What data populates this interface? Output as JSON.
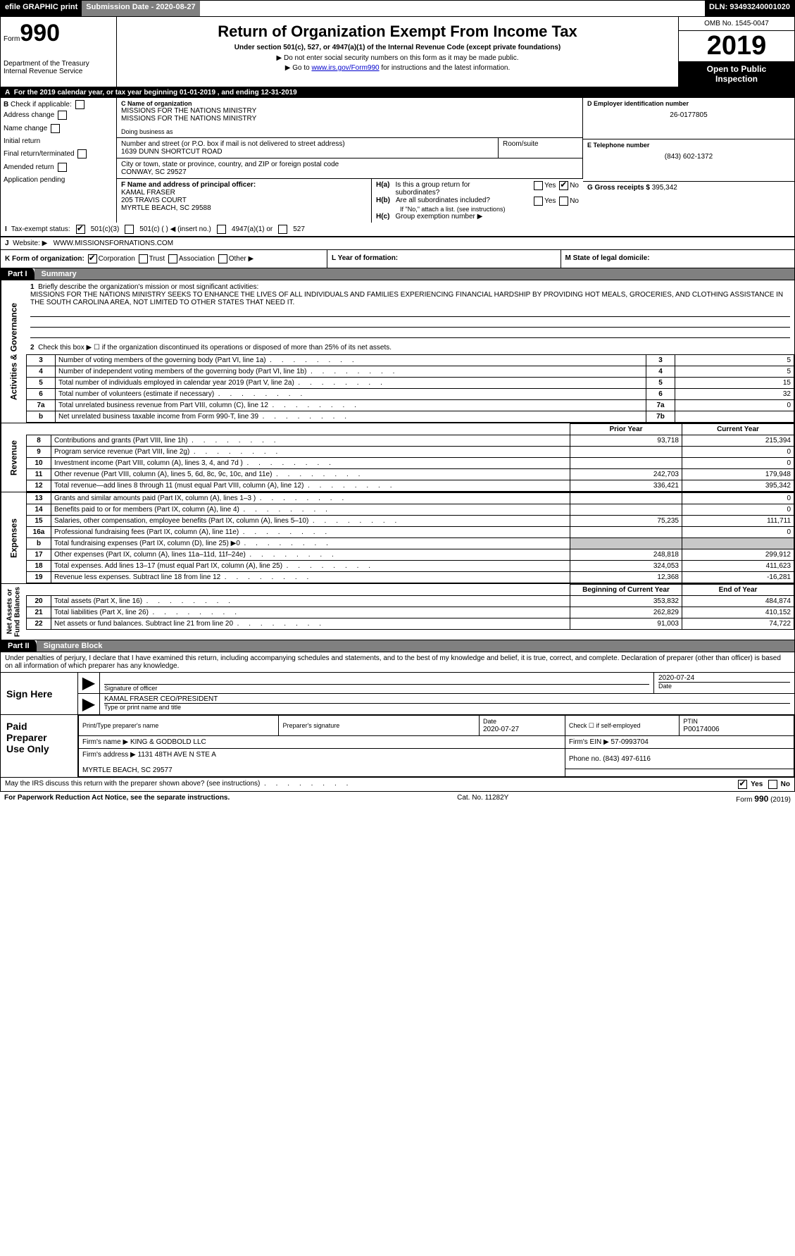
{
  "colors": {
    "black": "#000000",
    "white": "#ffffff",
    "gray": "#808080",
    "shade": "#c8c8c8",
    "link": "#0000cc"
  },
  "topbar": {
    "efile": "efile GRAPHIC print",
    "submission_label": "Submission Date - 2020-08-27",
    "dln": "DLN: 93493240001020"
  },
  "header": {
    "form_word": "Form",
    "form_num": "990",
    "dept": "Department of the Treasury\nInternal Revenue Service",
    "title": "Return of Organization Exempt From Income Tax",
    "subtitle": "Under section 501(c), 527, or 4947(a)(1) of the Internal Revenue Code (except private foundations)",
    "line_ssn": "▶ Do not enter social security numbers on this form as it may be made public.",
    "line_goto_pre": "▶ Go to ",
    "line_goto_link": "www.irs.gov/Form990",
    "line_goto_post": " for instructions and the latest information.",
    "omb": "OMB No. 1545-0047",
    "year": "2019",
    "inspect": "Open to Public\nInspection"
  },
  "A": {
    "text_pre": "For the 2019 calendar year, or tax year beginning ",
    "begin": "01-01-2019",
    "mid": " , and ending ",
    "end": "12-31-2019"
  },
  "B": {
    "header": "Check if applicable:",
    "items": [
      "Address change",
      "Name change",
      "Initial return",
      "Final return/terminated",
      "Amended return",
      "Application pending"
    ]
  },
  "C": {
    "name_label": "C Name of organization",
    "name1": "MISSIONS FOR THE NATIONS MINISTRY",
    "name2": "MISSIONS FOR THE NATIONS MINISTRY",
    "dba_label": "Doing business as",
    "street_label": "Number and street (or P.O. box if mail is not delivered to street address)",
    "room_label": "Room/suite",
    "street": "1639 DUNN SHORTCUT ROAD",
    "city_label": "City or town, state or province, country, and ZIP or foreign postal code",
    "city": "CONWAY, SC  29527"
  },
  "D": {
    "label": "D Employer identification number",
    "value": "26-0177805"
  },
  "E": {
    "label": "E Telephone number",
    "value": "(843) 602-1372"
  },
  "G": {
    "label": "G Gross receipts $ ",
    "value": "395,342"
  },
  "F": {
    "label": "F  Name and address of principal officer:",
    "name": "KAMAL FRASER",
    "addr1": "205 TRAVIS COURT",
    "addr2": "MYRTLE BEACH, SC  29588"
  },
  "H": {
    "a_label": "H(a)",
    "a_text": "Is this a group return for\nsubordinates?",
    "b_label": "H(b)",
    "b_text": "Are all subordinates included?",
    "b_note": "If \"No,\" attach a list. (see instructions)",
    "c_label": "H(c)",
    "c_text": "Group exemption number ▶",
    "yes": "Yes",
    "no": "No"
  },
  "I": {
    "label": "Tax-exempt status:",
    "opts": [
      "501(c)(3)",
      "501(c) (  ) ◀ (insert no.)",
      "4947(a)(1) or",
      "527"
    ]
  },
  "J": {
    "label": "Website: ▶",
    "value": "WWW.MISSIONSFORNATIONS.COM"
  },
  "K": {
    "label": "K Form of organization:",
    "opts": [
      "Corporation",
      "Trust",
      "Association",
      "Other ▶"
    ]
  },
  "L": {
    "label": "L Year of formation:"
  },
  "M": {
    "label": "M State of legal domicile:"
  },
  "part1": {
    "tab": "Part I",
    "title": "Summary",
    "line1_label": "Briefly describe the organization's mission or most significant activities:",
    "mission": "MISSIONS FOR THE NATIONS MINISTRY SEEKS TO ENHANCE THE LIVES OF ALL INDIVIDUALS AND FAMILIES EXPERIENCING FINANCIAL HARDSHIP BY PROVIDING HOT MEALS, GROCERIES, AND CLOTHING ASSISTANCE IN THE SOUTH CAROLINA AREA, NOT LIMITED TO OTHER STATES THAT NEED IT.",
    "line2": "Check this box ▶ ☐  if the organization discontinued its operations or disposed of more than 25% of its net assets.",
    "ag_label": "Activities & Governance",
    "gov_rows": [
      {
        "n": "3",
        "desc": "Number of voting members of the governing body (Part VI, line 1a)",
        "box": "3",
        "val": "5"
      },
      {
        "n": "4",
        "desc": "Number of independent voting members of the governing body (Part VI, line 1b)",
        "box": "4",
        "val": "5"
      },
      {
        "n": "5",
        "desc": "Total number of individuals employed in calendar year 2019 (Part V, line 2a)",
        "box": "5",
        "val": "15"
      },
      {
        "n": "6",
        "desc": "Total number of volunteers (estimate if necessary)",
        "box": "6",
        "val": "32"
      },
      {
        "n": "7a",
        "desc": "Total unrelated business revenue from Part VIII, column (C), line 12",
        "box": "7a",
        "val": "0"
      },
      {
        "n": "b",
        "desc": "Net unrelated business taxable income from Form 990-T, line 39",
        "box": "7b",
        "val": ""
      }
    ],
    "py_header": "Prior Year",
    "cy_header": "Current Year",
    "rev_label": "Revenue",
    "rev_rows": [
      {
        "n": "8",
        "desc": "Contributions and grants (Part VIII, line 1h)",
        "py": "93,718",
        "cy": "215,394"
      },
      {
        "n": "9",
        "desc": "Program service revenue (Part VIII, line 2g)",
        "py": "",
        "cy": "0"
      },
      {
        "n": "10",
        "desc": "Investment income (Part VIII, column (A), lines 3, 4, and 7d )",
        "py": "",
        "cy": "0"
      },
      {
        "n": "11",
        "desc": "Other revenue (Part VIII, column (A), lines 5, 6d, 8c, 9c, 10c, and 11e)",
        "py": "242,703",
        "cy": "179,948"
      },
      {
        "n": "12",
        "desc": "Total revenue—add lines 8 through 11 (must equal Part VIII, column (A), line 12)",
        "py": "336,421",
        "cy": "395,342"
      }
    ],
    "exp_label": "Expenses",
    "exp_rows": [
      {
        "n": "13",
        "desc": "Grants and similar amounts paid (Part IX, column (A), lines 1–3 )",
        "py": "",
        "cy": "0",
        "shade": false
      },
      {
        "n": "14",
        "desc": "Benefits paid to or for members (Part IX, column (A), line 4)",
        "py": "",
        "cy": "0",
        "shade": false
      },
      {
        "n": "15",
        "desc": "Salaries, other compensation, employee benefits (Part IX, column (A), lines 5–10)",
        "py": "75,235",
        "cy": "111,711",
        "shade": false
      },
      {
        "n": "16a",
        "desc": "Professional fundraising fees (Part IX, column (A), line 11e)",
        "py": "",
        "cy": "0",
        "shade": false
      },
      {
        "n": "b",
        "desc": "Total fundraising expenses (Part IX, column (D), line 25) ▶0",
        "py": "",
        "cy": "",
        "shade": true
      },
      {
        "n": "17",
        "desc": "Other expenses (Part IX, column (A), lines 11a–11d, 11f–24e)",
        "py": "248,818",
        "cy": "299,912",
        "shade": false
      },
      {
        "n": "18",
        "desc": "Total expenses. Add lines 13–17 (must equal Part IX, column (A), line 25)",
        "py": "324,053",
        "cy": "411,623",
        "shade": false
      },
      {
        "n": "19",
        "desc": "Revenue less expenses. Subtract line 18 from line 12",
        "py": "12,368",
        "cy": "-16,281",
        "shade": false
      }
    ],
    "na_label": "Net Assets or\nFund Balances",
    "boy_header": "Beginning of Current Year",
    "eoy_header": "End of Year",
    "na_rows": [
      {
        "n": "20",
        "desc": "Total assets (Part X, line 16)",
        "py": "353,832",
        "cy": "484,874"
      },
      {
        "n": "21",
        "desc": "Total liabilities (Part X, line 26)",
        "py": "262,829",
        "cy": "410,152"
      },
      {
        "n": "22",
        "desc": "Net assets or fund balances. Subtract line 21 from line 20",
        "py": "91,003",
        "cy": "74,722"
      }
    ]
  },
  "part2": {
    "tab": "Part II",
    "title": "Signature Block",
    "penalties": "Under penalties of perjury, I declare that I have examined this return, including accompanying schedules and statements, and to the best of my knowledge and belief, it is true, correct, and complete. Declaration of preparer (other than officer) is based on all information of which preparer has any knowledge.",
    "sign_here": "Sign Here",
    "sig_officer_label": "Signature of officer",
    "sig_date": "2020-07-24",
    "date_label": "Date",
    "officer_name": "KAMAL FRASER CEO/PRESIDENT",
    "officer_label": "Type or print name and title",
    "paid": "Paid\nPreparer\nUse Only",
    "prep_name_label": "Print/Type preparer's name",
    "prep_sig_label": "Preparer's signature",
    "prep_date_label": "Date",
    "prep_date": "2020-07-27",
    "check_self": "Check ☐ if self-employed",
    "ptin_label": "PTIN",
    "ptin": "P00174006",
    "firm_name_label": "Firm's name    ▶",
    "firm_name": "KING & GODBOLD LLC",
    "firm_ein_label": "Firm's EIN ▶",
    "firm_ein": "57-0993704",
    "firm_addr_label": "Firm's address ▶",
    "firm_addr1": "1131 48TH AVE N STE A",
    "firm_addr2": "MYRTLE BEACH, SC  29577",
    "phone_label": "Phone no.",
    "phone": "(843) 497-6116",
    "discuss": "May the IRS discuss this return with the preparer shown above? (see instructions)",
    "yes": "Yes",
    "no": "No"
  },
  "footer": {
    "pra": "For Paperwork Reduction Act Notice, see the separate instructions.",
    "cat": "Cat. No. 11282Y",
    "form": "Form 990 (2019)"
  }
}
